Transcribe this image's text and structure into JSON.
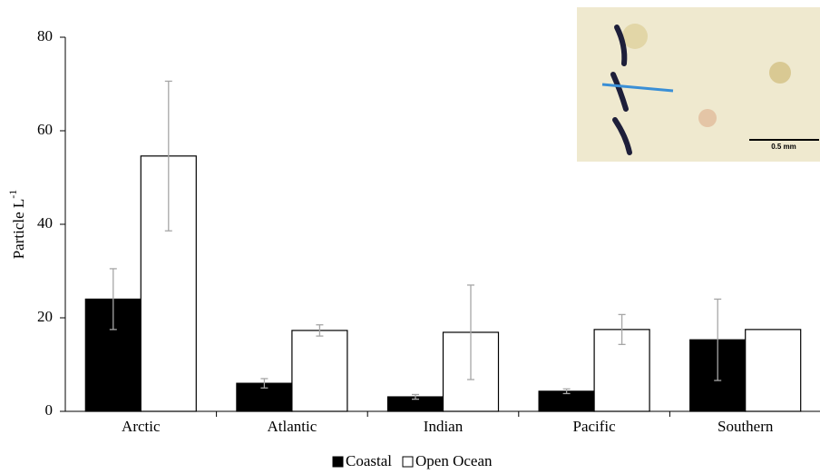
{
  "chart_data": {
    "type": "bar",
    "y_label": "Particle  L",
    "y_label_superscript": "-1",
    "categories": [
      "Arctic",
      "Atlantic",
      "Indian",
      "Pacific",
      "Southern"
    ],
    "series": [
      {
        "name": "Coastal",
        "color": "#000000",
        "values": [
          24,
          6,
          3.1,
          4.3,
          15.3
        ],
        "errors": [
          6.5,
          1,
          0.5,
          0.5,
          8.7
        ]
      },
      {
        "name": "Open Ocean",
        "color": "#ffffff",
        "values": [
          54.6,
          17.3,
          16.9,
          17.5,
          17.5
        ],
        "errors": [
          16,
          1.2,
          10.1,
          3.2,
          null
        ]
      }
    ],
    "ylim": [
      0,
      80
    ],
    "yticks": [
      0,
      20,
      40,
      60,
      80
    ],
    "error_bar_color": "#a6a6a6",
    "legend": "bottom",
    "inset_scale_label": "0.5 mm"
  }
}
